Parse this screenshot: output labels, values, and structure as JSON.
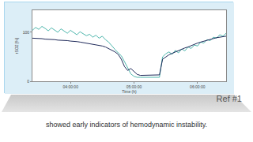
{
  "chart_data": {
    "type": "line",
    "x_label": "Time (h)",
    "y_label": "rSO2 [%]",
    "x": [
      3.4,
      3.45,
      3.5,
      3.55,
      3.6,
      3.65,
      3.7,
      3.75,
      3.8,
      3.85,
      3.9,
      3.95,
      4.0,
      4.05,
      4.1,
      4.15,
      4.2,
      4.25,
      4.3,
      4.35,
      4.4,
      4.45,
      4.5,
      4.55,
      4.6,
      4.65,
      4.7,
      4.75,
      4.8,
      4.85,
      4.9,
      4.95,
      5.0,
      5.05,
      5.1,
      5.15,
      5.2,
      5.25,
      5.3,
      5.35,
      5.4,
      5.45,
      5.5,
      5.55,
      5.6,
      5.65,
      5.7,
      5.75,
      5.8,
      5.85,
      5.9,
      5.95,
      6.0,
      6.05,
      6.1,
      6.15,
      6.2,
      6.25,
      6.3,
      6.35,
      6.4,
      6.45
    ],
    "series": [
      {
        "color": "#4db6ac",
        "values": [
          104,
          110,
          106,
          112,
          108,
          103,
          109,
          105,
          100,
          107,
          102,
          98,
          104,
          99,
          95,
          101,
          97,
          93,
          96,
          90,
          94,
          88,
          92,
          85,
          80,
          72,
          65,
          58,
          52,
          40,
          28,
          15,
          10,
          8,
          8,
          8,
          8,
          8,
          8,
          8,
          8,
          50,
          56,
          60,
          55,
          63,
          58,
          66,
          62,
          70,
          67,
          74,
          72,
          80,
          78,
          85,
          83,
          90,
          88,
          95,
          92,
          98
        ]
      },
      {
        "color": "#1f2a5a",
        "values": [
          88,
          88,
          87,
          87,
          86,
          86,
          85,
          85,
          84,
          84,
          83,
          83,
          82,
          82,
          81,
          80,
          79,
          78,
          77,
          76,
          75,
          74,
          72,
          70,
          67,
          63,
          60,
          55,
          45,
          30,
          22,
          26,
          20,
          14,
          12,
          12,
          12,
          12,
          12,
          12,
          13,
          45,
          50,
          54,
          57,
          60,
          63,
          66,
          68,
          70,
          73,
          75,
          78,
          80,
          82,
          84,
          86,
          88,
          89,
          90,
          91,
          92
        ]
      }
    ],
    "xlim": [
      3.4,
      6.45
    ],
    "xticks": [
      {
        "value": 4,
        "label": "04:00:00"
      },
      {
        "value": 5,
        "label": "05:00:00"
      },
      {
        "value": 6,
        "label": "06:00:00"
      }
    ],
    "ylim": [
      0,
      145
    ],
    "yticks": [
      0,
      100
    ],
    "grid": false
  },
  "slide": {
    "reference": "Ref #1",
    "caption": "showed early indicators of hemodynamic instability."
  }
}
